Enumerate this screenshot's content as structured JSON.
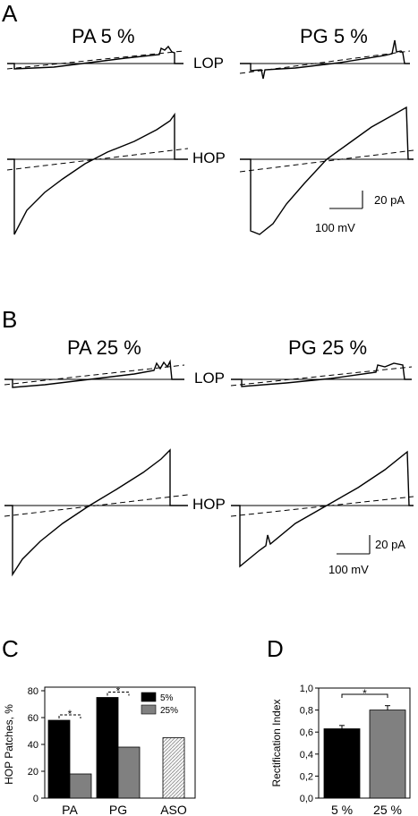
{
  "panel_a": {
    "letter": "A",
    "titles": [
      "PA 5 %",
      "PG 5 %"
    ],
    "lop_label": "LOP",
    "hop_label": "HOP",
    "scale_current": "20 pA",
    "scale_voltage": "100 mV"
  },
  "panel_b": {
    "letter": "B",
    "titles": [
      "PA 25 %",
      "PG 25 %"
    ],
    "lop_label": "LOP",
    "hop_label": "HOP",
    "scale_current": "20 pA",
    "scale_voltage": "100 mV"
  },
  "chart_data": [
    {
      "panel": "C",
      "type": "bar",
      "ylabel": "HOP Patches, %",
      "ylim": [
        0,
        80
      ],
      "yticks": [
        0,
        20,
        40,
        60,
        80
      ],
      "categories": [
        "PA",
        "PG",
        "ASO"
      ],
      "series": [
        {
          "name": "5%",
          "values": [
            58,
            75,
            45
          ],
          "color": "#000000"
        },
        {
          "name": "25%",
          "values": [
            18,
            38,
            null
          ],
          "color": "#808080"
        }
      ],
      "significance_marker": "*",
      "legend_position": "top-right"
    },
    {
      "panel": "D",
      "type": "bar",
      "ylabel": "Rectification Index",
      "ylim": [
        0,
        1
      ],
      "yticks": [
        "0,0",
        "0,2",
        "0,4",
        "0,6",
        "0,8",
        "1,0"
      ],
      "categories": [
        "5 %",
        "25 %"
      ],
      "values": [
        0.63,
        0.8
      ],
      "errors": [
        0.03,
        0.04
      ],
      "colors": [
        "#000000",
        "#808080"
      ],
      "significance_marker": "*"
    }
  ]
}
